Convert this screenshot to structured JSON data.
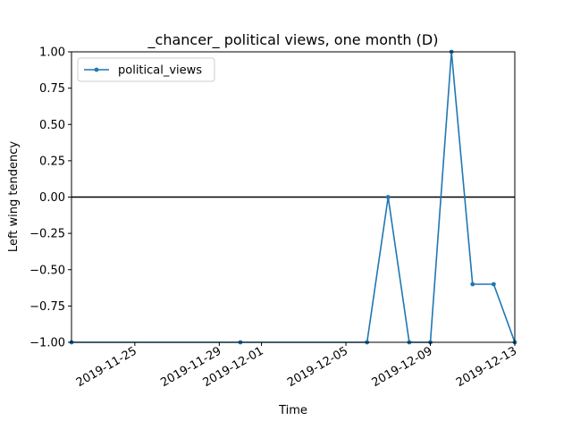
{
  "chart_data": {
    "type": "line",
    "title": "_chancer_ political views, one month (D)",
    "xlabel": "Time",
    "ylabel": "Left wing tendency",
    "xlim": [
      "2019-11-22",
      "2019-12-13"
    ],
    "ylim": [
      -1.0,
      1.0
    ],
    "x_ticks": [
      "2019-11-25",
      "2019-11-29",
      "2019-12-01",
      "2019-12-05",
      "2019-12-09",
      "2019-12-13"
    ],
    "y_ticks": [
      "−1.00",
      "−0.75",
      "−0.50",
      "−0.25",
      "0.00",
      "0.25",
      "0.50",
      "0.75",
      "1.00"
    ],
    "reference_line_y": 0.0,
    "legend_position": "upper-left",
    "grid": false,
    "series": [
      {
        "name": "political_views",
        "color": "#1f77b4",
        "marker": "point",
        "x": [
          "2019-11-22",
          "2019-11-30",
          "2019-12-06",
          "2019-12-07",
          "2019-12-08",
          "2019-12-09",
          "2019-12-10",
          "2019-12-11",
          "2019-12-12",
          "2019-12-13"
        ],
        "y": [
          -1.0,
          -1.0,
          -1.0,
          0.0,
          -1.0,
          -1.0,
          1.0,
          -0.6,
          -0.6,
          -1.0
        ]
      }
    ]
  }
}
